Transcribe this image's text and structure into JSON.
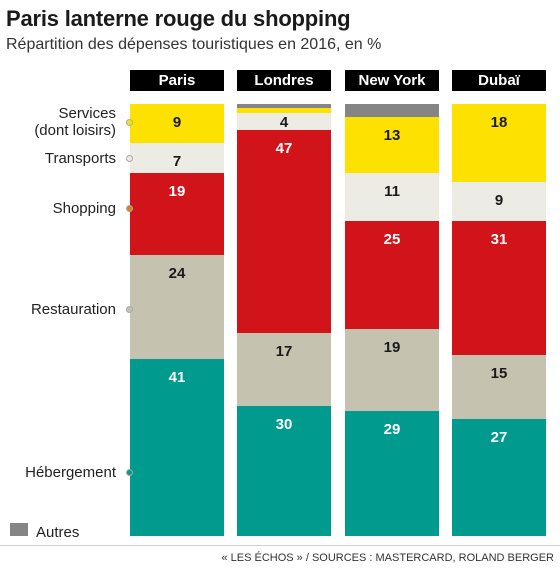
{
  "title": "Paris lanterne rouge du shopping",
  "subtitle": "Répartition des dépenses touristiques en 2016, en %",
  "source": "« LES ÉCHOS » / SOURCES : MASTERCARD, ROLAND BERGER",
  "chart_data": {
    "type": "bar",
    "stacked": true,
    "orientation": "vertical",
    "categories": [
      "Paris",
      "Londres",
      "New York",
      "Dubaï"
    ],
    "series": [
      {
        "name": "Hébergement",
        "color": "#009a8e",
        "values": [
          41,
          30,
          29,
          27
        ],
        "labels": [
          "41",
          "30",
          "29",
          "27"
        ]
      },
      {
        "name": "Restauration",
        "color": "#c6c2b0",
        "values": [
          24,
          17,
          19,
          15
        ],
        "labels": [
          "24",
          "17",
          "19",
          "15"
        ]
      },
      {
        "name": "Shopping",
        "color": "#d0141a",
        "values": [
          19,
          47,
          25,
          31
        ],
        "labels": [
          "19",
          "47",
          "25",
          "31"
        ]
      },
      {
        "name": "Transports",
        "color": "#ecebe4",
        "values": [
          7,
          4,
          11,
          9
        ],
        "labels": [
          "7",
          "4",
          "11",
          "9"
        ]
      },
      {
        "name": "Services\n(dont loisirs)",
        "color": "#fde100",
        "values": [
          9,
          1,
          13,
          18
        ],
        "labels": [
          "9",
          "",
          "13",
          "18"
        ]
      },
      {
        "name": "Autres",
        "color": "#858585",
        "values": [
          0,
          1,
          3,
          0
        ],
        "labels": [
          "",
          "",
          "",
          ""
        ]
      }
    ],
    "category_labels": [
      {
        "text": "Services\n(dont loisirs)",
        "dot_color": "#fde100"
      },
      {
        "text": "Transports",
        "dot_color": "#ecebe4"
      },
      {
        "text": "Shopping",
        "dot_color": "#e07b12"
      },
      {
        "text": "Restauration",
        "dot_color": "#c6c2b0"
      },
      {
        "text": "Hébergement",
        "dot_color": "#009a8e"
      }
    ],
    "legend": [
      {
        "label": "Autres",
        "color": "#858585"
      }
    ],
    "ylim": [
      0,
      100
    ]
  }
}
